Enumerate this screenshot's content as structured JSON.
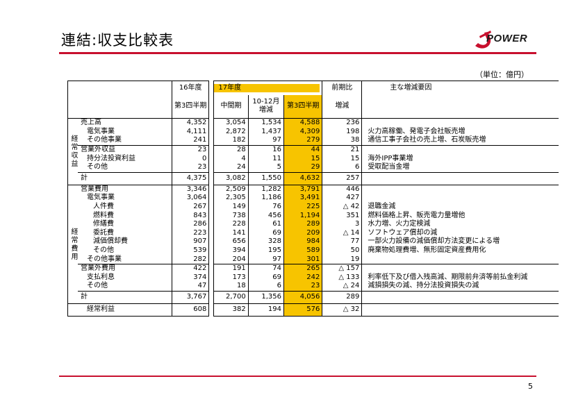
{
  "title": "連結:収支比較表",
  "logo": {
    "text": "POWER",
    "brand_color": "#c8102e"
  },
  "unit": "（単位：億円）",
  "page_number": "5",
  "colors": {
    "accent_rule": "#c8102e",
    "highlight": "#f7c400"
  },
  "headers": {
    "fy16": "16年度",
    "fy17": "17年度",
    "compare": "前期比",
    "reason": "主な増減要因",
    "q3_16": "第3四半期",
    "interim": "中間期",
    "oct_dec": "10-12月\n増減",
    "q3_17": "第3四半期",
    "change": "増減"
  },
  "side_labels": {
    "ordinary_revenue": "経常収益",
    "ordinary_expense": "経常費用"
  },
  "rows": [
    {
      "label": "売上高",
      "indent": 0,
      "fy16": "4,352",
      "interim": "3,054",
      "oct_dec": "1,534",
      "q3": "4,588",
      "change": "236",
      "reason": ""
    },
    {
      "label": "電気事業",
      "indent": 1,
      "fy16": "4,111",
      "interim": "2,872",
      "oct_dec": "1,437",
      "q3": "4,309",
      "change": "198",
      "reason": "火力高稼働、発電子会社販売増"
    },
    {
      "label": "その他事業",
      "indent": 1,
      "fy16": "241",
      "interim": "182",
      "oct_dec": "97",
      "q3": "279",
      "change": "38",
      "reason": "通信工事子会社の売上増、石炭販売増"
    },
    {
      "label": "営業外収益",
      "indent": 0,
      "fy16": "23",
      "interim": "28",
      "oct_dec": "16",
      "q3": "44",
      "change": "21",
      "reason": ""
    },
    {
      "label": "持分法投資利益",
      "indent": 1,
      "fy16": "0",
      "interim": "4",
      "oct_dec": "11",
      "q3": "15",
      "change": "15",
      "reason": "海外IPP事業増"
    },
    {
      "label": "その他",
      "indent": 1,
      "fy16": "23",
      "interim": "24",
      "oct_dec": "5",
      "q3": "29",
      "change": "6",
      "reason": "受取配当金増"
    },
    {
      "label": "計",
      "indent": 0,
      "fy16": "4,375",
      "interim": "3,082",
      "oct_dec": "1,550",
      "q3": "4,632",
      "change": "257",
      "reason": ""
    },
    {
      "label": "営業費用",
      "indent": 0,
      "fy16": "3,346",
      "interim": "2,509",
      "oct_dec": "1,282",
      "q3": "3,791",
      "change": "446",
      "reason": ""
    },
    {
      "label": "電気事業",
      "indent": 1,
      "fy16": "3,064",
      "interim": "2,305",
      "oct_dec": "1,186",
      "q3": "3,491",
      "change": "427",
      "reason": ""
    },
    {
      "label": "人件費",
      "indent": 2,
      "fy16": "267",
      "interim": "149",
      "oct_dec": "76",
      "q3": "225",
      "change": "△ 42",
      "reason": "退職金減"
    },
    {
      "label": "燃料費",
      "indent": 2,
      "fy16": "843",
      "interim": "738",
      "oct_dec": "456",
      "q3": "1,194",
      "change": "351",
      "reason": "燃料価格上昇、販売電力量増他"
    },
    {
      "label": "修繕費",
      "indent": 2,
      "fy16": "286",
      "interim": "228",
      "oct_dec": "61",
      "q3": "289",
      "change": "3",
      "reason": "水力増、火力定検減"
    },
    {
      "label": "委託費",
      "indent": 2,
      "fy16": "223",
      "interim": "141",
      "oct_dec": "69",
      "q3": "209",
      "change": "△ 14",
      "reason": "ソフトウェア償却の減"
    },
    {
      "label": "減価償却費",
      "indent": 2,
      "fy16": "907",
      "interim": "656",
      "oct_dec": "328",
      "q3": "984",
      "change": "77",
      "reason": "一部火力設備の減価償却方法変更による増"
    },
    {
      "label": "その他",
      "indent": 2,
      "fy16": "539",
      "interim": "394",
      "oct_dec": "195",
      "q3": "589",
      "change": "50",
      "reason": "廃棄物処理費増、無形固定資産費用化"
    },
    {
      "label": "その他事業",
      "indent": 1,
      "fy16": "282",
      "interim": "204",
      "oct_dec": "97",
      "q3": "301",
      "change": "19",
      "reason": ""
    },
    {
      "label": "営業外費用",
      "indent": 0,
      "fy16": "422",
      "interim": "191",
      "oct_dec": "74",
      "q3": "265",
      "change": "△ 157",
      "reason": ""
    },
    {
      "label": "支払利息",
      "indent": 1,
      "fy16": "374",
      "interim": "173",
      "oct_dec": "69",
      "q3": "242",
      "change": "△ 133",
      "reason": "利率低下及び借入残高減、期限前弁済等前払金利減"
    },
    {
      "label": "その他",
      "indent": 1,
      "fy16": "47",
      "interim": "18",
      "oct_dec": "6",
      "q3": "23",
      "change": "△ 24",
      "reason": "減損損失の減、持分法投資損失の減"
    },
    {
      "label": "計",
      "indent": 0,
      "fy16": "3,767",
      "interim": "2,700",
      "oct_dec": "1,356",
      "q3": "4,056",
      "change": "289",
      "reason": ""
    },
    {
      "label": "経常利益",
      "indent": 1,
      "fy16": "608",
      "interim": "382",
      "oct_dec": "194",
      "q3": "576",
      "change": "△ 32",
      "reason": ""
    }
  ]
}
